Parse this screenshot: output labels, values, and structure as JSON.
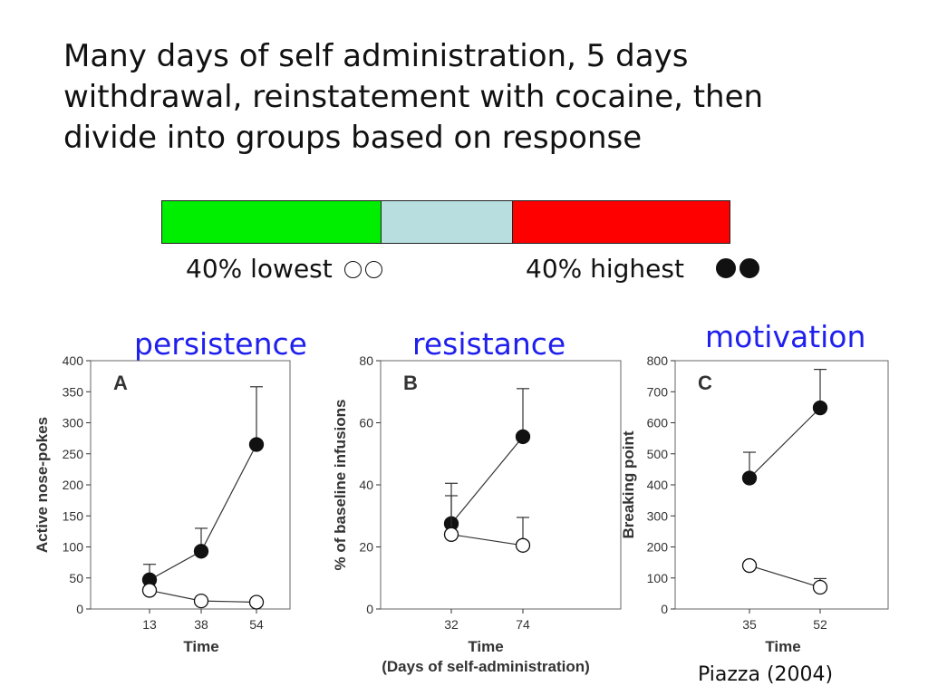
{
  "slide": {
    "title_lines": [
      "Many days of self administration, 5 days",
      "withdrawal, reinstatement with cocaine, then",
      "divide into groups based on response"
    ],
    "bar_colors": {
      "low": "#00ee00",
      "middle": "#b8dee0",
      "high": "#ff0000"
    },
    "group_low_label": "40% lowest",
    "group_high_label": "40% highest",
    "panel_headings": [
      "persistence",
      "resistance",
      "motivation"
    ],
    "citation": "Piazza (2004)"
  },
  "chart_data": [
    {
      "type": "line",
      "panel": "A",
      "xlabel": "Time",
      "ylabel": "Active nose-pokes",
      "ylim": [
        0,
        400
      ],
      "yticks": [
        0,
        50,
        100,
        150,
        200,
        250,
        300,
        350,
        400
      ],
      "x": [
        13,
        38,
        54
      ],
      "series": [
        {
          "marker": "filled",
          "values": [
            47,
            93,
            265
          ],
          "err_upper": [
            72,
            130,
            358
          ]
        },
        {
          "marker": "open",
          "values": [
            30,
            13,
            11
          ],
          "err_upper": [
            null,
            null,
            null
          ]
        }
      ]
    },
    {
      "type": "line",
      "panel": "B",
      "xlabel": "Time",
      "xlabel2": "(Days of self-administration)",
      "ylabel": "% of baseline infusions",
      "ylim": [
        0,
        80
      ],
      "yticks": [
        0,
        20,
        40,
        60,
        80
      ],
      "x": [
        32,
        74
      ],
      "series": [
        {
          "marker": "filled",
          "values": [
            27.5,
            55.5
          ],
          "err_upper": [
            40.5,
            71
          ]
        },
        {
          "marker": "open",
          "values": [
            24,
            20.5
          ],
          "err_upper": [
            36.5,
            29.5
          ]
        }
      ]
    },
    {
      "type": "line",
      "panel": "C",
      "xlabel": "Time",
      "ylabel": "Breaking point",
      "ylim": [
        0,
        800
      ],
      "yticks": [
        0,
        100,
        200,
        300,
        400,
        500,
        600,
        700,
        800
      ],
      "x": [
        35,
        52
      ],
      "series": [
        {
          "marker": "filled",
          "values": [
            422,
            648
          ],
          "err_upper": [
            505,
            772
          ]
        },
        {
          "marker": "open",
          "values": [
            140,
            70
          ],
          "err_upper": [
            null,
            98
          ]
        }
      ]
    }
  ]
}
